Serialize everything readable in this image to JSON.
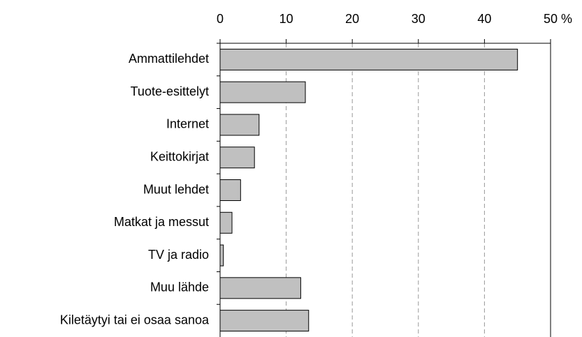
{
  "chart_data": {
    "type": "barh",
    "categories": [
      "Ammattilehdet",
      "Tuote-esittelyt",
      "Internet",
      "Keittokirjat",
      "Muut lehdet",
      "Matkat ja messut",
      "TV ja radio",
      "Muu lähde",
      "Kiletäytyi tai ei osaa sanoa"
    ],
    "values": [
      45.0,
      12.9,
      5.9,
      5.2,
      3.1,
      1.8,
      0.5,
      12.2,
      13.4
    ],
    "color": "#c0c0c0",
    "xlim": [
      0,
      50
    ],
    "xticks": [
      0,
      10,
      20,
      30,
      40,
      {
        "value": 50,
        "label": "50 %"
      }
    ],
    "grid": true
  }
}
